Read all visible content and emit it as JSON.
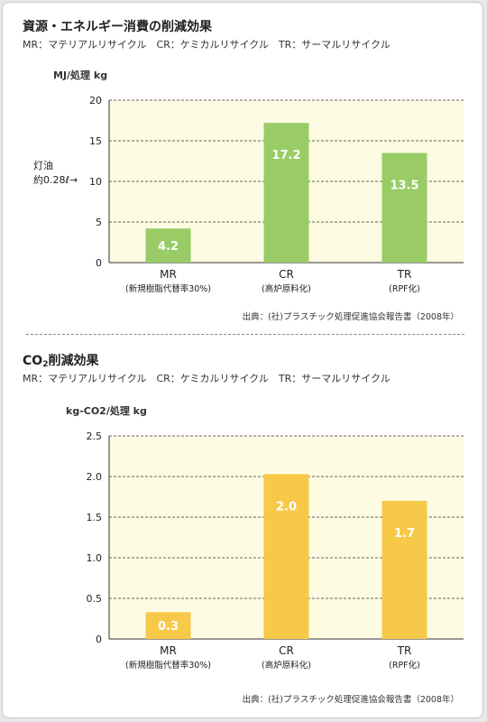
{
  "chart_data": [
    {
      "type": "bar",
      "title": "資源・エネルギー消費の削減効果",
      "legend_text": "MR：マテリアルリサイクル　CR：ケミカルリサイクル　TR：サーマルリサイクル",
      "ylabel": "MJ/処理 kg",
      "ylim": [
        0,
        20
      ],
      "yticks": [
        0,
        5,
        10,
        15,
        20
      ],
      "categories": [
        "MR",
        "CR",
        "TR"
      ],
      "category_sublabels": [
        "(新規樹脂代替率30%)",
        "(高炉原料化)",
        "(RPF化)"
      ],
      "values": [
        4.2,
        17.2,
        13.5
      ],
      "value_labels": [
        "4.2",
        "17.2",
        "13.5"
      ],
      "bar_color": "#99cc66",
      "plot_bg": "#fdfbe2",
      "annotation": "灯油\n約0.28ℓ→",
      "annotation_y": 10,
      "grid": true,
      "source": "出典：(社)プラスチック処理促進協会報告書（2008年）"
    },
    {
      "type": "bar",
      "title_parts": [
        "CO",
        "2",
        "削減効果"
      ],
      "legend_text": "MR：マテリアルリサイクル　CR：ケミカルリサイクル　TR：サーマルリサイクル",
      "ylabel": "kg-CO2/処理 kg",
      "ylim": [
        0,
        2.5
      ],
      "yticks": [
        "0",
        "0.5",
        "1.0",
        "1.5",
        "2.0",
        "2.5"
      ],
      "categories": [
        "MR",
        "CR",
        "TR"
      ],
      "category_sublabels": [
        "(新規樹脂代替率30%)",
        "(高炉原料化)",
        "(RPF化)"
      ],
      "values": [
        0.33,
        2.03,
        1.7
      ],
      "value_labels": [
        "0.3",
        "2.0",
        "1.7"
      ],
      "bar_color": "#f7c948",
      "plot_bg": "#fdfbe2",
      "grid": true,
      "source": "出典：(社)プラスチック処理促進協会報告書（2008年）"
    }
  ]
}
